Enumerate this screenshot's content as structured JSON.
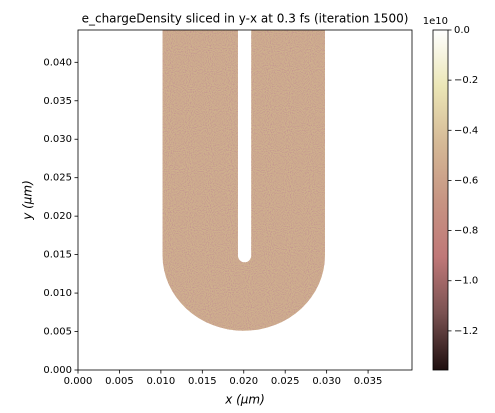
{
  "chart_data": {
    "type": "density_map",
    "title": "e_chargeDensity sliced in y-x at 0.3 fs  (iteration 1500)",
    "xlabel": "x (μm)",
    "ylabel": "y (μm)",
    "xlim": [
      0,
      0.0403
    ],
    "ylim": [
      0,
      0.0442
    ],
    "xticks": [
      {
        "value": 0,
        "label": "0.000"
      },
      {
        "value": 0.005,
        "label": "0.005"
      },
      {
        "value": 0.01,
        "label": "0.010"
      },
      {
        "value": 0.015,
        "label": "0.015"
      },
      {
        "value": 0.02,
        "label": "0.020"
      },
      {
        "value": 0.025,
        "label": "0.025"
      },
      {
        "value": 0.03,
        "label": "0.030"
      },
      {
        "value": 0.035,
        "label": "0.035"
      }
    ],
    "yticks": [
      {
        "value": 0,
        "label": "0.000"
      },
      {
        "value": 0.005,
        "label": "0.005"
      },
      {
        "value": 0.01,
        "label": "0.010"
      },
      {
        "value": 0.015,
        "label": "0.015"
      },
      {
        "value": 0.02,
        "label": "0.020"
      },
      {
        "value": 0.025,
        "label": "0.025"
      },
      {
        "value": 0.03,
        "label": "0.030"
      },
      {
        "value": 0.035,
        "label": "0.035"
      },
      {
        "value": 0.04,
        "label": "0.040"
      }
    ],
    "region": {
      "x": [
        0.0102,
        0.0298
      ],
      "slot_x": [
        0.0193,
        0.0209
      ],
      "slot_bottom": 0.014,
      "y_bottom": 0.0051
    },
    "colorbar": {
      "lim": [
        -1.356,
        0
      ],
      "ticks": [
        {
          "value": 0,
          "label": "0.0"
        },
        {
          "value": -0.2,
          "label": "−0.2"
        },
        {
          "value": -0.4,
          "label": "−0.4"
        },
        {
          "value": -0.6,
          "label": "−0.6"
        },
        {
          "value": -0.8,
          "label": "−0.8"
        },
        {
          "value": -1.0,
          "label": "−1.0"
        },
        {
          "value": -1.2,
          "label": "−1.2"
        }
      ],
      "multiplier": "1e10",
      "colormap": [
        "#ffffff",
        "#ebe6b6",
        "#d5b996",
        "#c79583",
        "#c07878",
        "#7a5252",
        "#1e0e0e"
      ]
    },
    "fill_color": "#cfb08e",
    "noise_color": "#8a4848"
  }
}
